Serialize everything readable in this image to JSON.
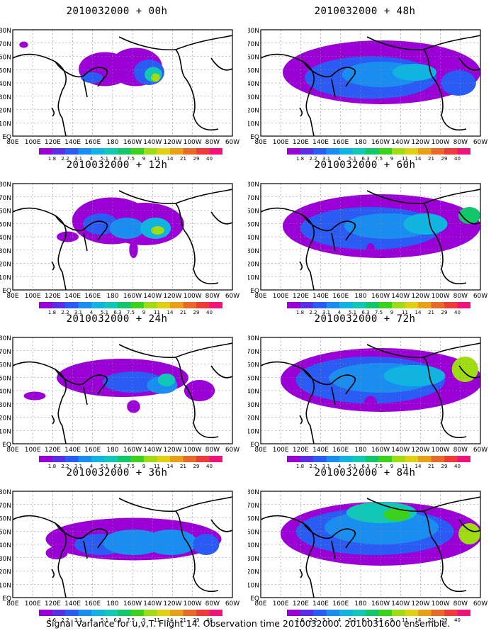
{
  "caption": "Signal Variance for u,v,T. Flight 14. Observation time 2010032000. 2010031600 ensemble.",
  "colors": {
    "legend": [
      "#9a00d6",
      "#5a2ee6",
      "#2a5cf5",
      "#1a8ef0",
      "#10b4e0",
      "#10c8b8",
      "#10c86a",
      "#3ad21a",
      "#a0dc14",
      "#e0d010",
      "#e8a016",
      "#e86a28",
      "#f03a3a",
      "#f0147a"
    ],
    "land_outline": "#000000",
    "grid": "#888888"
  },
  "chart_data": [
    {
      "type": "heatmap",
      "title": "2010032000 + 00h",
      "legend_ticks": [
        "1.8",
        "2.2",
        "3.1",
        "4",
        "5.1",
        "6.3",
        "7.5",
        "9",
        "11",
        "14",
        "21",
        "29",
        "40"
      ],
      "xticks": [
        "80E",
        "100E",
        "120E",
        "140E",
        "160E",
        "180",
        "160W",
        "140W",
        "120W",
        "100W",
        "80W",
        "60W"
      ],
      "yticks": [
        "80N",
        "70N",
        "60N",
        "50N",
        "40N",
        "30N",
        "20N",
        "10N",
        "EQ"
      ]
    },
    {
      "type": "heatmap",
      "title": "2010032000 + 12h",
      "legend_ticks": [
        "1.8",
        "2.2",
        "3.1",
        "4",
        "5.1",
        "6.3",
        "7.5",
        "9",
        "11",
        "14",
        "21",
        "29",
        "40"
      ],
      "xticks": [
        "80E",
        "100E",
        "120E",
        "140E",
        "160E",
        "180",
        "160W",
        "140W",
        "120W",
        "100W",
        "80W",
        "60W"
      ],
      "yticks": [
        "80N",
        "70N",
        "60N",
        "50N",
        "40N",
        "30N",
        "20N",
        "10N",
        "EQ"
      ]
    },
    {
      "type": "heatmap",
      "title": "2010032000 + 24h",
      "legend_ticks": [
        "1.8",
        "2.2",
        "3.1",
        "4",
        "5.1",
        "6.3",
        "7.5",
        "9",
        "11",
        "14",
        "21",
        "29",
        "40"
      ],
      "xticks": [
        "80E",
        "100E",
        "120E",
        "140E",
        "160E",
        "180",
        "160W",
        "140W",
        "120W",
        "100W",
        "80W",
        "60W"
      ],
      "yticks": [
        "80N",
        "70N",
        "60N",
        "50N",
        "40N",
        "30N",
        "20N",
        "10N",
        "EQ"
      ]
    },
    {
      "type": "heatmap",
      "title": "2010032000 + 36h",
      "legend_ticks": [
        "1.6",
        "2.2",
        "3.1",
        "4",
        "5.1",
        "6.3",
        "7.5",
        "9",
        "11",
        "14",
        "21",
        "29",
        "40"
      ],
      "xticks": [
        "80E",
        "100E",
        "120E",
        "140E",
        "160E",
        "180",
        "160W",
        "140W",
        "120W",
        "100W",
        "80W",
        "60W"
      ],
      "yticks": [
        "80N",
        "70N",
        "60N",
        "50N",
        "40N",
        "30N",
        "20N",
        "10N",
        "EQ"
      ]
    },
    {
      "type": "heatmap",
      "title": "2010032000 + 48h",
      "legend_ticks": [
        "1.8",
        "2.2",
        "3.1",
        "4",
        "5.1",
        "6.3",
        "7.5",
        "9",
        "11",
        "14",
        "21",
        "29",
        "40"
      ],
      "xticks": [
        "80E",
        "100E",
        "120E",
        "140E",
        "160E",
        "180",
        "160W",
        "140W",
        "120W",
        "100W",
        "80W",
        "60W"
      ],
      "yticks": [
        "80N",
        "70N",
        "60N",
        "50N",
        "40N",
        "30N",
        "20N",
        "10N",
        "EQ"
      ]
    },
    {
      "type": "heatmap",
      "title": "2010032000 + 60h",
      "legend_ticks": [
        "1.8",
        "2.2",
        "3.1",
        "4",
        "5.1",
        "6.3",
        "7.5",
        "9",
        "11",
        "14",
        "21",
        "29",
        "40"
      ],
      "xticks": [
        "80E",
        "100E",
        "120E",
        "140E",
        "160E",
        "180",
        "160W",
        "140W",
        "120W",
        "100W",
        "80W",
        "60W"
      ],
      "yticks": [
        "80N",
        "70N",
        "60N",
        "50N",
        "40N",
        "30N",
        "20N",
        "10N",
        "EQ"
      ]
    },
    {
      "type": "heatmap",
      "title": "2010032000 + 72h",
      "legend_ticks": [
        "1.8",
        "2.2",
        "3.1",
        "4",
        "5.1",
        "6.3",
        "7.5",
        "9",
        "11",
        "14",
        "21",
        "29",
        "40"
      ],
      "xticks": [
        "80E",
        "100E",
        "120E",
        "140E",
        "160E",
        "180",
        "160W",
        "140W",
        "120W",
        "100W",
        "80W",
        "60W"
      ],
      "yticks": [
        "80N",
        "70N",
        "60N",
        "50N",
        "40N",
        "30N",
        "20N",
        "10N",
        "EQ"
      ]
    },
    {
      "type": "heatmap",
      "title": "2010032000 + 84h",
      "legend_ticks": [
        "1.6",
        "2.2",
        "3.1",
        "4",
        "5.1",
        "6.3",
        "7.5",
        "9",
        "11",
        "14",
        "21",
        "29",
        "40"
      ],
      "xticks": [
        "80E",
        "100E",
        "120E",
        "140E",
        "160E",
        "180",
        "160W",
        "140W",
        "120W",
        "100W",
        "80W",
        "60W"
      ],
      "yticks": [
        "80N",
        "70N",
        "60N",
        "50N",
        "40N",
        "30N",
        "20N",
        "10N",
        "EQ"
      ]
    }
  ]
}
